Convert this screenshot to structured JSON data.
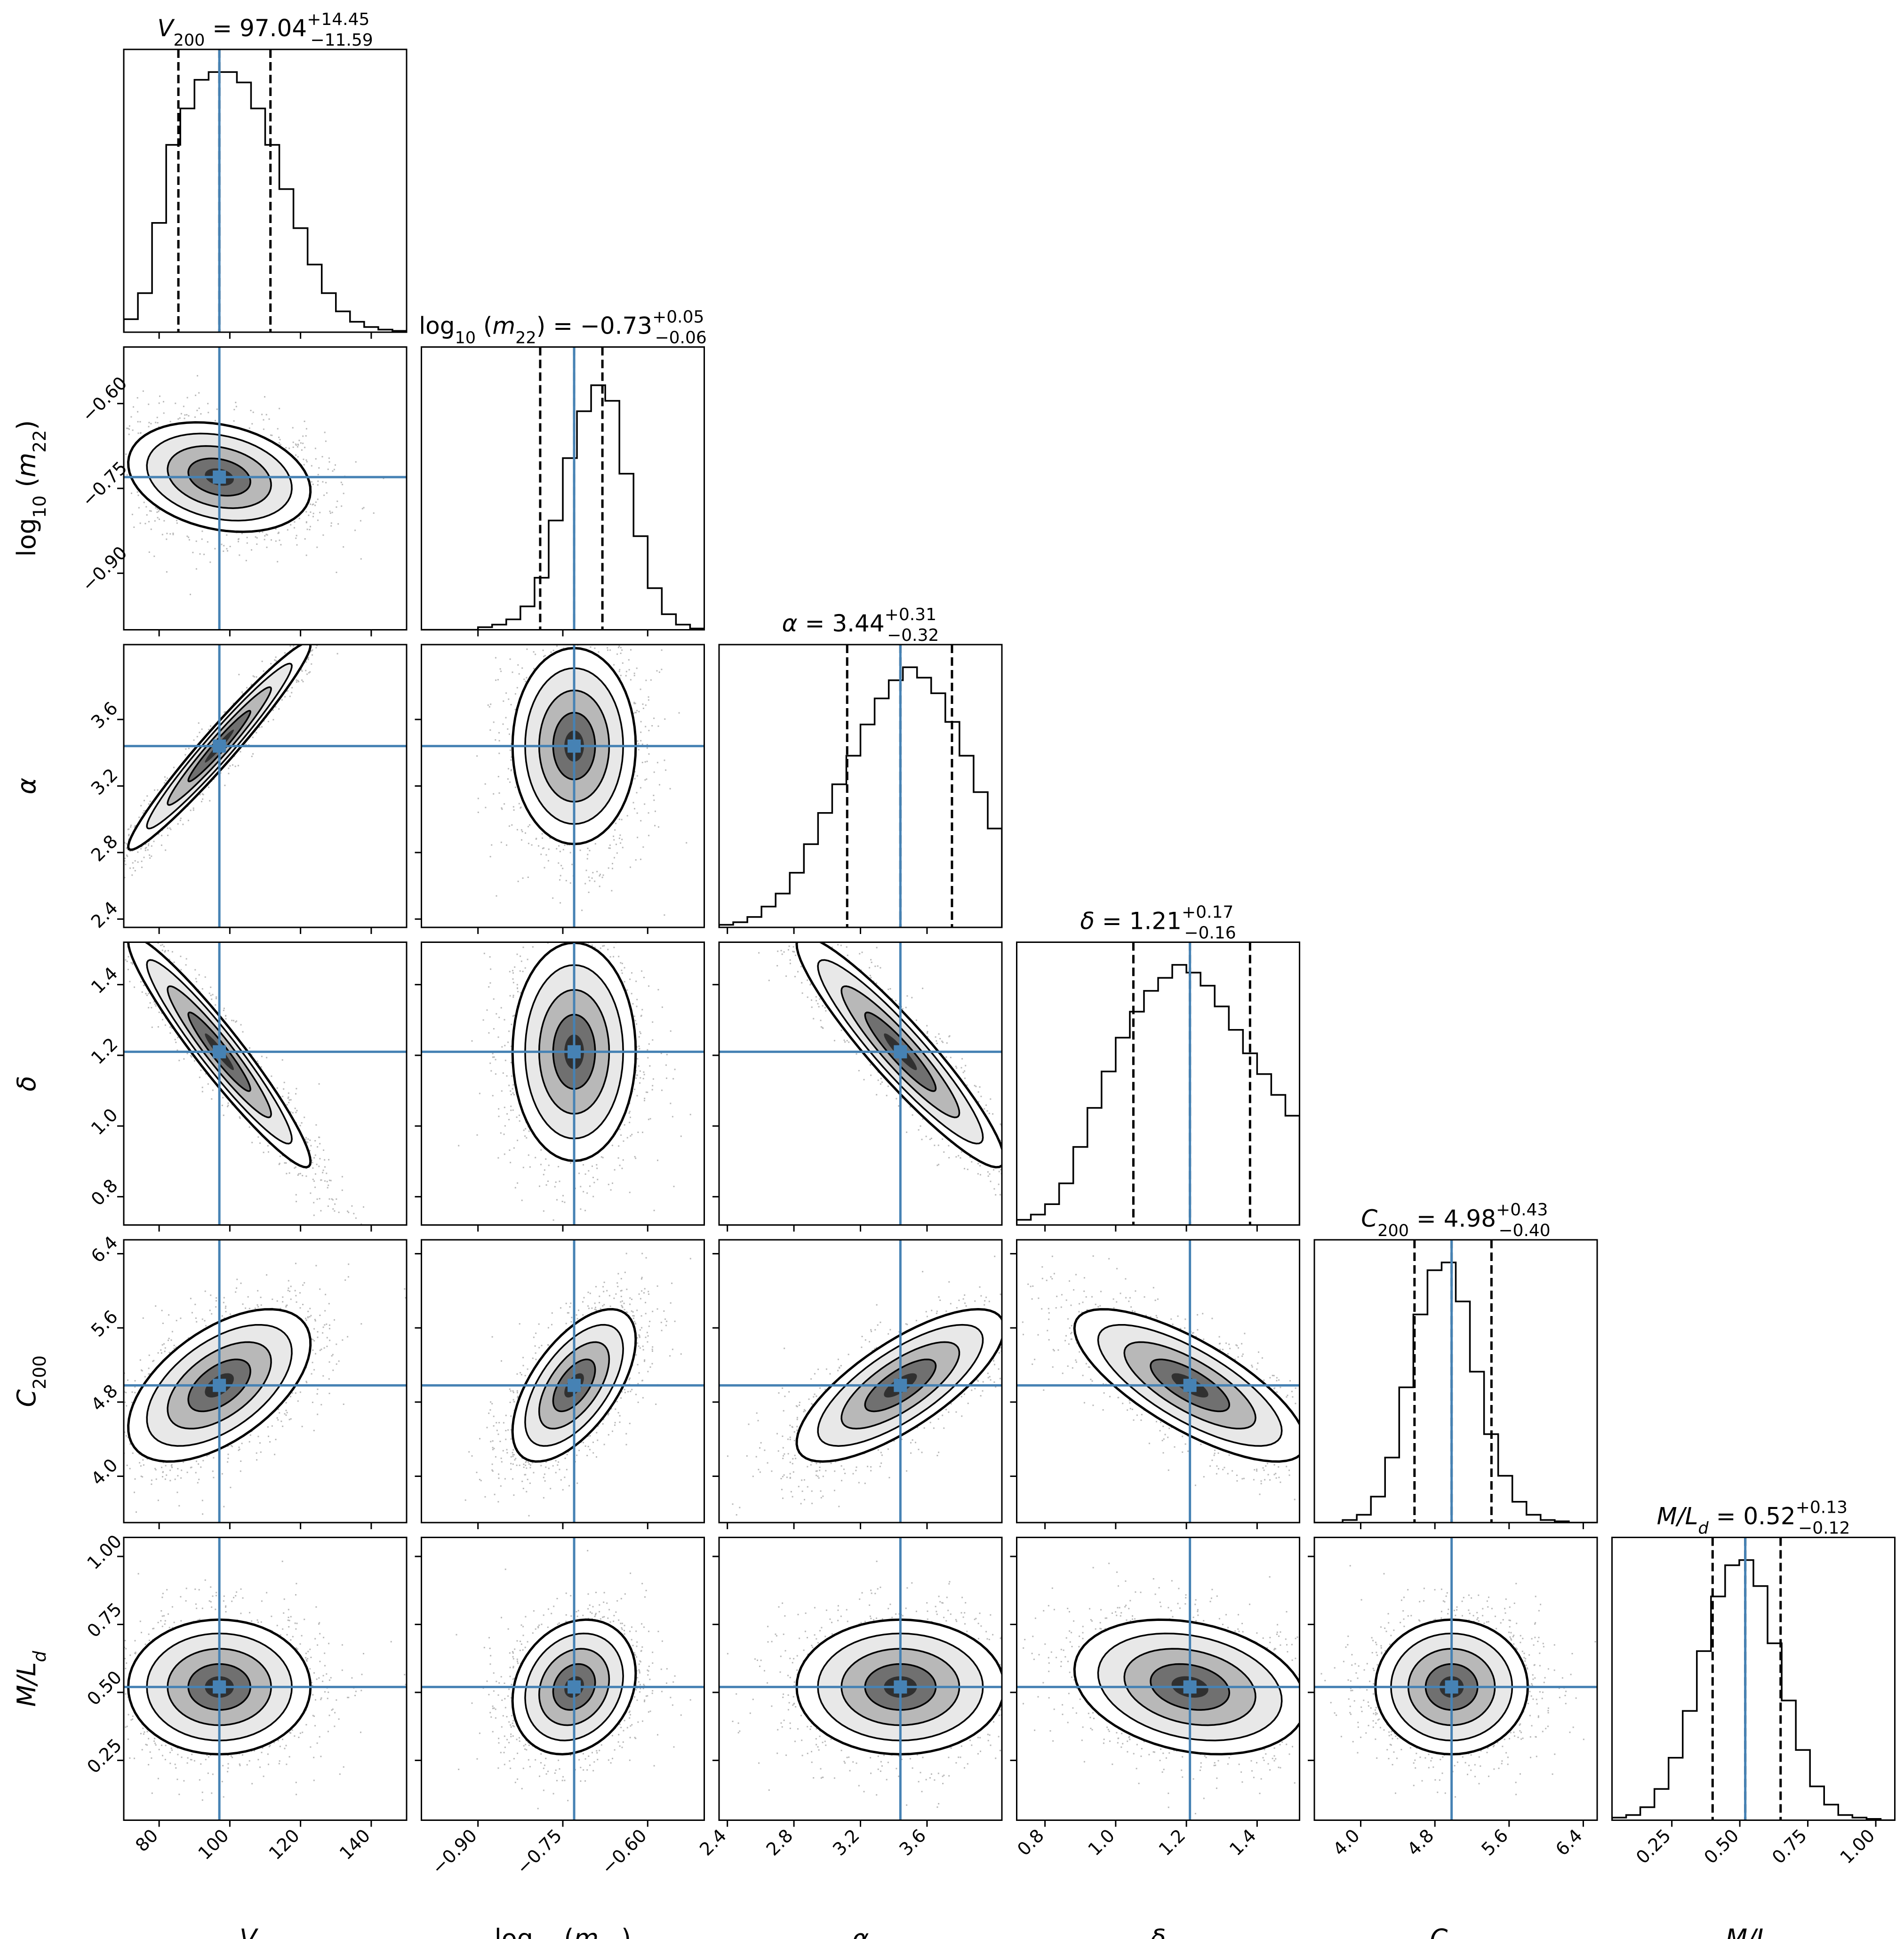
{
  "chart_data": {
    "type": "corner",
    "marker_color": "#4682b4",
    "params": [
      {
        "key": "V200",
        "label_main": "V",
        "label_sub": "200",
        "italic": true,
        "median": 97.04,
        "plus": "14.45",
        "minus": "11.59",
        "median_text": "97.04",
        "range": [
          70,
          150
        ],
        "ticks": [
          80,
          100,
          120,
          140
        ],
        "tick_labels": [
          "80",
          "100",
          "120",
          "140"
        ],
        "hist": [
          0.05,
          0.15,
          0.42,
          0.72,
          0.86,
          0.97,
          1.0,
          1.0,
          0.96,
          0.86,
          0.72,
          0.55,
          0.4,
          0.26,
          0.15,
          0.08,
          0.04,
          0.02,
          0.01,
          0.005
        ]
      },
      {
        "key": "log10m22",
        "label_main": "log",
        "label_sub": "10",
        "label_tail": "(m",
        "label_tail_sub": "22",
        "label_end": ")",
        "median": -0.73,
        "plus": "0.05",
        "minus": "0.06",
        "median_text": "−0.73",
        "range": [
          -1.0,
          -0.5
        ],
        "ticks": [
          -0.9,
          -0.75,
          -0.6
        ],
        "tick_labels": [
          "−0.90",
          "−0.75",
          "−0.60"
        ],
        "hist": [
          0,
          0,
          0,
          0,
          0.01,
          0.02,
          0.04,
          0.09,
          0.2,
          0.42,
          0.66,
          0.84,
          0.94,
          0.88,
          0.6,
          0.36,
          0.16,
          0.06,
          0.02,
          0.005
        ]
      },
      {
        "key": "alpha",
        "label_main": "α",
        "italic": true,
        "median": 3.44,
        "plus": "0.31",
        "minus": "0.32",
        "median_text": "3.44",
        "range": [
          2.35,
          4.05
        ],
        "ticks": [
          2.4,
          2.8,
          3.2,
          3.6
        ],
        "tick_labels": [
          "2.4",
          "2.8",
          "3.2",
          "3.6"
        ],
        "hist": [
          0.01,
          0.02,
          0.04,
          0.08,
          0.13,
          0.21,
          0.32,
          0.44,
          0.55,
          0.66,
          0.78,
          0.88,
          0.95,
          1.0,
          0.96,
          0.9,
          0.79,
          0.66,
          0.52,
          0.38
        ]
      },
      {
        "key": "delta",
        "label_main": "δ",
        "italic": true,
        "median": 1.21,
        "plus": "0.17",
        "minus": "0.16",
        "median_text": "1.21",
        "range": [
          0.72,
          1.52
        ],
        "ticks": [
          0.8,
          1.0,
          1.2,
          1.4
        ],
        "tick_labels": [
          "0.8",
          "1.0",
          "1.2",
          "1.4"
        ],
        "hist": [
          0.02,
          0.04,
          0.08,
          0.16,
          0.3,
          0.45,
          0.59,
          0.72,
          0.82,
          0.9,
          0.95,
          1.0,
          0.97,
          0.92,
          0.84,
          0.75,
          0.66,
          0.58,
          0.5,
          0.42
        ]
      },
      {
        "key": "C200",
        "label_main": "C",
        "label_sub": "200",
        "italic": true,
        "median": 4.98,
        "plus": "0.43",
        "minus": "0.40",
        "median_text": "4.98",
        "range": [
          3.5,
          6.55
        ],
        "ticks": [
          4.0,
          4.8,
          5.6,
          6.4
        ],
        "tick_labels": [
          "4.0",
          "4.8",
          "5.6",
          "6.4"
        ],
        "hist": [
          0,
          0,
          0.01,
          0.03,
          0.1,
          0.25,
          0.52,
          0.8,
          0.97,
          1.0,
          0.85,
          0.58,
          0.34,
          0.18,
          0.08,
          0.03,
          0.01,
          0.005,
          0,
          0
        ]
      },
      {
        "key": "ML",
        "label_main": "M/L",
        "label_sub": "d",
        "italic": true,
        "median": 0.52,
        "plus": "0.13",
        "minus": "0.12",
        "median_text": "0.52",
        "range": [
          0.03,
          1.07
        ],
        "ticks": [
          0.25,
          0.5,
          0.75,
          1.0
        ],
        "tick_labels": [
          "0.25",
          "0.50",
          "0.75",
          "1.00"
        ],
        "hist": [
          0.01,
          0.02,
          0.05,
          0.12,
          0.24,
          0.42,
          0.65,
          0.86,
          0.98,
          1.0,
          0.9,
          0.68,
          0.46,
          0.27,
          0.13,
          0.06,
          0.02,
          0.01,
          0.005,
          0
        ]
      }
    ],
    "correlations": [
      {
        "i": 1,
        "j": 0,
        "rho": -0.25,
        "sx": 0.9,
        "sy": 0.8
      },
      {
        "i": 2,
        "j": 0,
        "rho": 0.97,
        "sx": 0.9,
        "sy": 0.9
      },
      {
        "i": 2,
        "j": 1,
        "rho": 0.0,
        "sx": 0.9,
        "sy": 0.85
      },
      {
        "i": 3,
        "j": 0,
        "rho": -0.95,
        "sx": 0.9,
        "sy": 0.9
      },
      {
        "i": 3,
        "j": 1,
        "rho": 0.0,
        "sx": 0.9,
        "sy": 0.85
      },
      {
        "i": 3,
        "j": 2,
        "rho": -0.93,
        "sx": 0.9,
        "sy": 0.9
      },
      {
        "i": 4,
        "j": 0,
        "rho": 0.55,
        "sx": 0.9,
        "sy": 0.9
      },
      {
        "i": 4,
        "j": 1,
        "rho": 0.6,
        "sx": 0.9,
        "sy": 0.9
      },
      {
        "i": 4,
        "j": 2,
        "rho": 0.75,
        "sx": 0.9,
        "sy": 0.9
      },
      {
        "i": 4,
        "j": 3,
        "rho": -0.75,
        "sx": 0.9,
        "sy": 0.9
      },
      {
        "i": 5,
        "j": 0,
        "rho": 0.0,
        "sx": 0.9,
        "sy": 0.9
      },
      {
        "i": 5,
        "j": 1,
        "rho": 0.2,
        "sx": 0.9,
        "sy": 0.9
      },
      {
        "i": 5,
        "j": 2,
        "rho": 0.0,
        "sx": 0.9,
        "sy": 0.9
      },
      {
        "i": 5,
        "j": 3,
        "rho": -0.25,
        "sx": 0.9,
        "sy": 0.9
      },
      {
        "i": 5,
        "j": 4,
        "rho": 0.0,
        "sx": 0.9,
        "sy": 0.9
      }
    ]
  }
}
